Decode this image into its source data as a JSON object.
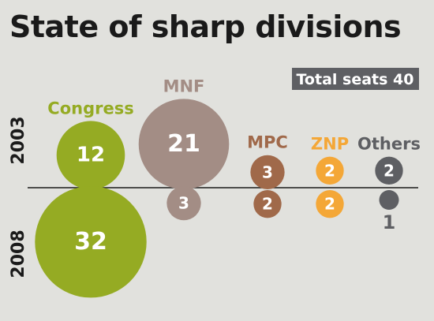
{
  "chart_data": {
    "type": "bubble",
    "title": "State of sharp divisions",
    "total_seats_label": "Total seats 40",
    "years": [
      "2003",
      "2008"
    ],
    "series": [
      {
        "name": "Congress",
        "color": "#95ab23",
        "text_color": "#ffffff",
        "values": {
          "2003": 12,
          "2008": 32
        }
      },
      {
        "name": "MNF",
        "color": "#a38d85",
        "text_color": "#ffffff",
        "values": {
          "2003": 21,
          "2008": 3
        }
      },
      {
        "name": "MPC",
        "color": "#a0694a",
        "text_color": "#ffffff",
        "values": {
          "2003": 3,
          "2008": 2
        }
      },
      {
        "name": "ZNP",
        "color": "#f4a737",
        "text_color": "#ffffff",
        "values": {
          "2003": 2,
          "2008": 2
        }
      },
      {
        "name": "Others",
        "color": "#5e5f63",
        "text_color": "#5e5f63",
        "values": {
          "2003": 2,
          "2008": 1
        }
      }
    ]
  }
}
